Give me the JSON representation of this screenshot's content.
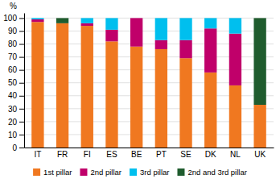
{
  "chart_data": {
    "type": "bar",
    "stacked": true,
    "ylabel": "%",
    "categories": [
      "IT",
      "FR",
      "FI",
      "ES",
      "BE",
      "PT",
      "SE",
      "DK",
      "NL",
      "UK"
    ],
    "series": [
      {
        "name": "1st pillar",
        "color": "#F07820",
        "values": [
          97,
          96,
          94,
          82,
          78,
          76,
          69,
          58,
          48,
          33
        ]
      },
      {
        "name": "2nd pillar",
        "color": "#C0006A",
        "values": [
          2,
          0,
          2,
          9,
          22,
          7,
          14,
          34,
          40,
          0
        ]
      },
      {
        "name": "3rd pillar",
        "color": "#00BFEE",
        "values": [
          1,
          0,
          4,
          9,
          0,
          17,
          17,
          8,
          12,
          0
        ]
      },
      {
        "name": "2nd and 3rd pillar",
        "color": "#1F5C2E",
        "values": [
          0,
          4,
          0,
          0,
          0,
          0,
          0,
          0,
          0,
          67
        ]
      }
    ],
    "ylim": [
      0,
      104
    ],
    "yticks": [
      0,
      10,
      20,
      30,
      40,
      50,
      60,
      70,
      80,
      90,
      100
    ],
    "grid": true,
    "legend": "bottom"
  }
}
